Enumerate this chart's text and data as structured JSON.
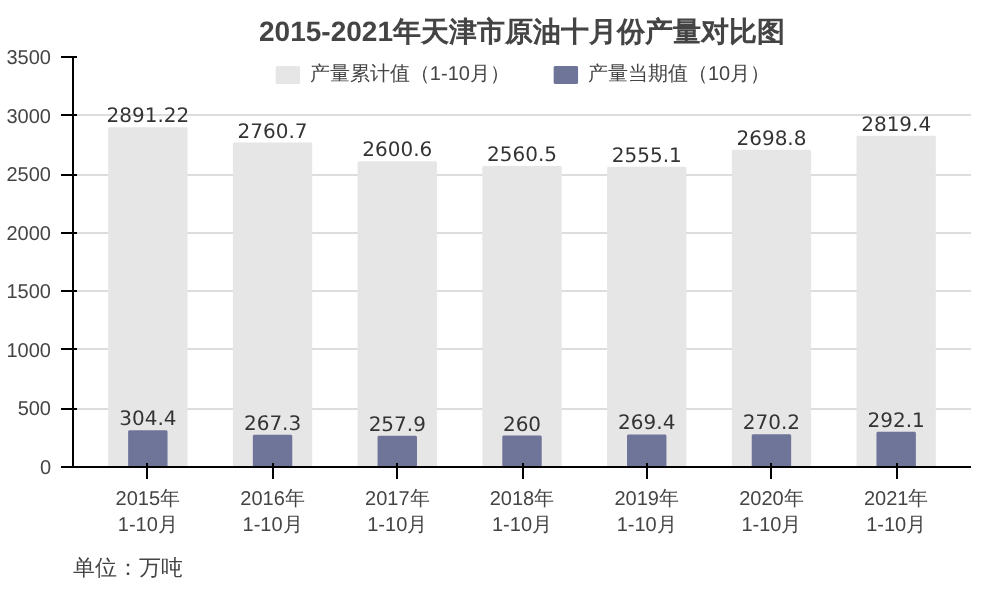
{
  "chart_data": {
    "type": "bar",
    "title": "2015-2021年天津市原油十月份产量对比图",
    "categories": [
      "2015年\n1-10月",
      "2016年\n1-10月",
      "2017年\n1-10月",
      "2018年\n1-10月",
      "2019年\n1-10月",
      "2020年\n1-10月",
      "2021年\n1-10月"
    ],
    "series": [
      {
        "name": "产量累计值（1-10月）",
        "color": "#e6e6e6",
        "values": [
          2891.22,
          2760.7,
          2600.6,
          2560.5,
          2555.1,
          2698.8,
          2819.4
        ]
      },
      {
        "name": "产量当期值（10月）",
        "color": "#6f7499",
        "values": [
          304.4,
          267.3,
          257.9,
          260,
          269.4,
          270.2,
          292.1
        ]
      }
    ],
    "ylim": [
      0,
      3500
    ],
    "yticks": [
      0,
      500,
      1000,
      1500,
      2000,
      2500,
      3000,
      3500
    ],
    "grid": "y",
    "legend": "top",
    "data_labels": true,
    "annotations": [
      "单位：万吨"
    ]
  }
}
